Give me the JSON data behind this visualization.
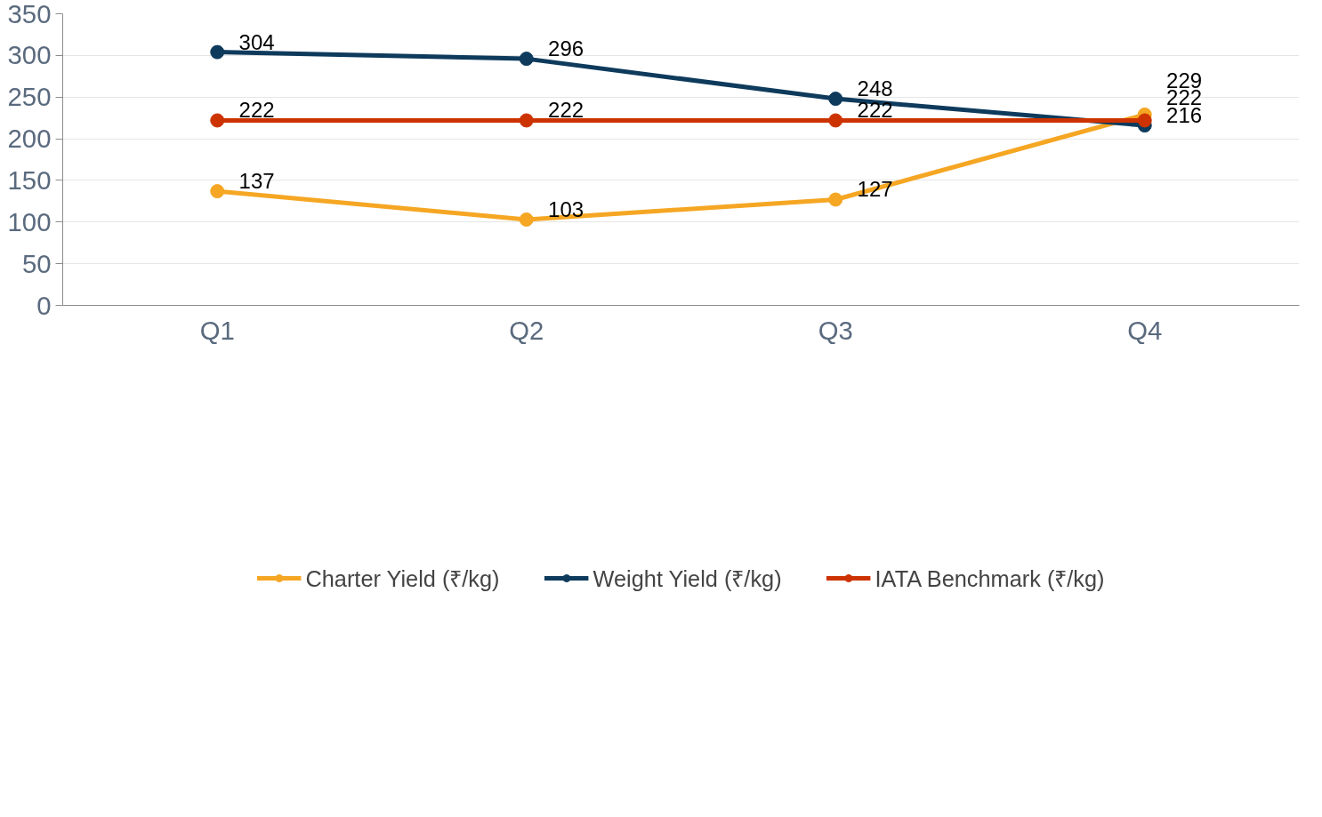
{
  "chart_data": {
    "type": "line",
    "categories": [
      "Q1",
      "Q2",
      "Q3",
      "Q4"
    ],
    "series": [
      {
        "name": "Charter Yield (₹/kg)",
        "color": "#f5a623",
        "values": [
          137,
          103,
          127,
          229
        ]
      },
      {
        "name": "Weight Yield (₹/kg)",
        "color": "#0e3a5c",
        "values": [
          304,
          296,
          248,
          216
        ]
      },
      {
        "name": "IATA Benchmark (₹/kg)",
        "color": "#cc3300",
        "values": [
          222,
          222,
          222,
          222
        ]
      }
    ],
    "ylim": [
      0,
      350
    ],
    "yticks": [
      0,
      50,
      100,
      150,
      200,
      250,
      300,
      350
    ],
    "grid": "y",
    "legend": "bottom",
    "marker": "circle",
    "line_style": "solid",
    "data_labels": true
  }
}
